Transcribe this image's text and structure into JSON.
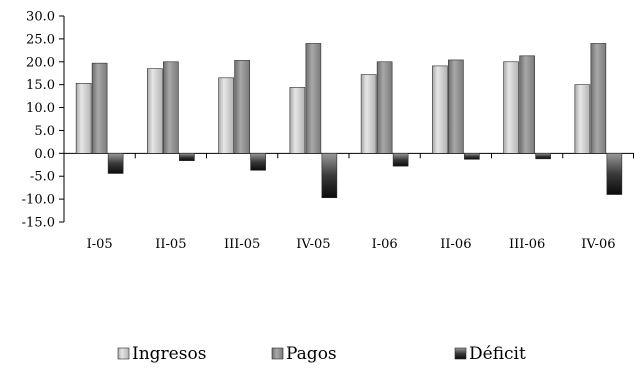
{
  "chart_data": {
    "type": "bar",
    "title": "",
    "xlabel": "",
    "ylabel": "",
    "ylim": [
      -15,
      30
    ],
    "ytick_step": 5,
    "ytick_labels": [
      "30.0",
      "25.0",
      "20.0",
      "15.0",
      "10.0",
      "5.0",
      "0.0",
      "-5.0",
      "-10.0",
      "-15.0"
    ],
    "categories": [
      "I-05",
      "II-05",
      "III-05",
      "IV-05",
      "I-06",
      "II-06",
      "III-06",
      "IV-06"
    ],
    "series": [
      {
        "name": "Ingresos",
        "values": [
          15.3,
          18.5,
          16.5,
          14.4,
          17.2,
          19.1,
          20.0,
          15.0
        ],
        "color": "#c8c8c8"
      },
      {
        "name": "Pagos",
        "values": [
          19.7,
          20.0,
          20.3,
          24.0,
          20.0,
          20.4,
          21.3,
          24.0
        ],
        "color": "#8f8f8f"
      },
      {
        "name": "Déficit",
        "values": [
          -4.4,
          -1.6,
          -3.7,
          -9.7,
          -2.8,
          -1.3,
          -1.2,
          -9.0
        ],
        "color": "#1f1f1f"
      }
    ],
    "grid": false,
    "legend_position": "bottom"
  }
}
